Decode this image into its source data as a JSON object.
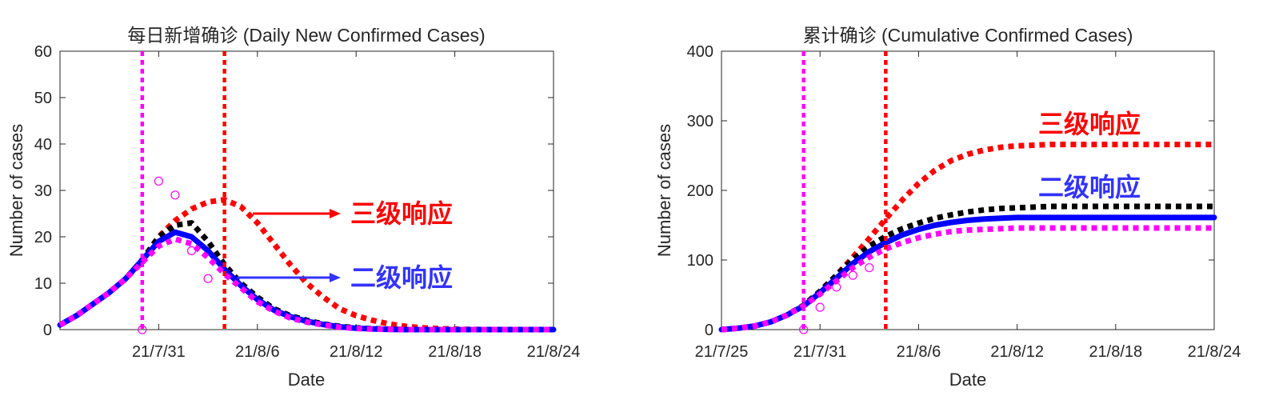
{
  "chart_data": [
    {
      "type": "line",
      "title": "每日新增确诊 (Daily New Confirmed Cases)",
      "xlabel": "Date",
      "ylabel": "Number of cases",
      "xlim": [
        "21/7/25",
        "21/8/24"
      ],
      "ylim": [
        0,
        60
      ],
      "yticks": [
        0,
        10,
        20,
        30,
        40,
        50,
        60
      ],
      "xtick_labels": [
        "21/7/31",
        "21/8/6",
        "21/8/12",
        "21/8/18",
        "21/8/24"
      ],
      "grid": false,
      "vlines": [
        {
          "x": "21/7/30",
          "color": "#ff00ff"
        },
        {
          "x": "21/8/4",
          "color": "#ff0000"
        }
      ],
      "annotations": [
        {
          "text": "三级响应",
          "color": "#ff0000",
          "arrow": true
        },
        {
          "text": "二级响应",
          "color": "#3333ff",
          "arrow": true
        }
      ],
      "x": [
        "21/7/25",
        "21/7/26",
        "21/7/27",
        "21/7/28",
        "21/7/29",
        "21/7/30",
        "21/7/31",
        "21/8/1",
        "21/8/2",
        "21/8/3",
        "21/8/4",
        "21/8/5",
        "21/8/6",
        "21/8/7",
        "21/8/8",
        "21/8/9",
        "21/8/10",
        "21/8/11",
        "21/8/12",
        "21/8/13",
        "21/8/14",
        "21/8/15",
        "21/8/16",
        "21/8/17",
        "21/8/18",
        "21/8/19",
        "21/8/20",
        "21/8/21",
        "21/8/22",
        "21/8/23",
        "21/8/24"
      ],
      "series": [
        {
          "color": "#ff0000",
          "style": "dotted",
          "values": [
            1,
            3,
            5.5,
            8,
            11,
            15,
            20,
            23.5,
            26,
            27.5,
            28,
            26.5,
            23,
            18.5,
            14,
            10,
            7,
            4.5,
            3,
            2,
            1.2,
            0.7,
            0.4,
            0.2,
            0.1,
            0.05,
            0,
            0,
            0,
            0,
            0
          ]
        },
        {
          "color": "#000000",
          "style": "dotted",
          "values": [
            1,
            3,
            5.5,
            8,
            11,
            15,
            20,
            22.5,
            23,
            19,
            14,
            10,
            7,
            4.5,
            3,
            2,
            1.2,
            0.7,
            0.4,
            0.2,
            0.1,
            0,
            0,
            0,
            0,
            0,
            0,
            0,
            0,
            0,
            0
          ]
        },
        {
          "color": "#0000ff",
          "style": "solid",
          "values": [
            1,
            3,
            5.5,
            8,
            11,
            15,
            19,
            21,
            20,
            17,
            13,
            9.5,
            6.5,
            4.2,
            2.8,
            1.8,
            1.1,
            0.6,
            0.3,
            0.15,
            0.05,
            0,
            0,
            0,
            0,
            0,
            0,
            0,
            0,
            0,
            0
          ]
        },
        {
          "color": "#ff00ff",
          "style": "dotted",
          "values": [
            1,
            3,
            5.5,
            8,
            11,
            14.5,
            18,
            19.5,
            18.5,
            15.5,
            12,
            9,
            6,
            4,
            2.5,
            1.6,
            1,
            0.5,
            0.25,
            0.1,
            0.05,
            0,
            0,
            0,
            0,
            0,
            0,
            0,
            0,
            0,
            0
          ]
        }
      ],
      "observed": {
        "color": "#ff00ff",
        "x": [
          "21/7/30",
          "21/7/31",
          "21/8/1",
          "21/8/2",
          "21/8/3"
        ],
        "values": [
          0,
          32,
          29,
          17,
          11
        ]
      }
    },
    {
      "type": "line",
      "title": "累计确诊 (Cumulative Confirmed Cases)",
      "xlabel": "Date",
      "ylabel": "Number of cases",
      "xlim": [
        "21/7/25",
        "21/8/24"
      ],
      "ylim": [
        0,
        400
      ],
      "yticks": [
        0,
        100,
        200,
        300,
        400
      ],
      "xtick_labels": [
        "21/7/25",
        "21/7/31",
        "21/8/6",
        "21/8/12",
        "21/8/18",
        "21/8/24"
      ],
      "grid": false,
      "vlines": [
        {
          "x": "21/7/30",
          "color": "#ff00ff"
        },
        {
          "x": "21/8/4",
          "color": "#ff0000"
        }
      ],
      "annotations": [
        {
          "text": "三级响应",
          "color": "#ff0000",
          "arrow": false
        },
        {
          "text": "二级响应",
          "color": "#3333ff",
          "arrow": false
        }
      ],
      "x": [
        "21/7/25",
        "21/7/26",
        "21/7/27",
        "21/7/28",
        "21/7/29",
        "21/7/30",
        "21/7/31",
        "21/8/1",
        "21/8/2",
        "21/8/3",
        "21/8/4",
        "21/8/5",
        "21/8/6",
        "21/8/7",
        "21/8/8",
        "21/8/9",
        "21/8/10",
        "21/8/11",
        "21/8/12",
        "21/8/13",
        "21/8/14",
        "21/8/15",
        "21/8/16",
        "21/8/17",
        "21/8/18",
        "21/8/19",
        "21/8/20",
        "21/8/21",
        "21/8/22",
        "21/8/23",
        "21/8/24"
      ],
      "series": [
        {
          "color": "#ff0000",
          "style": "dotted",
          "values": [
            0,
            2,
            5,
            11,
            21,
            35,
            55,
            78,
            104,
            131,
            159,
            186,
            210,
            229,
            243,
            252,
            258,
            262,
            264,
            265,
            266,
            266,
            266,
            266,
            266,
            266,
            266,
            266,
            266,
            266,
            266
          ]
        },
        {
          "color": "#000000",
          "style": "dotted",
          "values": [
            0,
            2,
            5,
            11,
            21,
            35,
            55,
            78,
            101,
            120,
            134,
            145,
            153,
            160,
            165,
            169,
            172,
            174,
            175,
            176,
            177,
            177,
            177,
            177,
            177,
            177,
            177,
            177,
            177,
            177,
            177
          ]
        },
        {
          "color": "#0000ff",
          "style": "solid",
          "values": [
            0,
            2,
            5,
            11,
            21,
            34,
            53,
            74,
            95,
            112,
            125,
            136,
            144,
            150,
            154,
            157,
            159,
            160,
            161,
            161,
            161,
            161,
            161,
            161,
            161,
            161,
            161,
            161,
            161,
            161,
            161
          ]
        },
        {
          "color": "#ff00ff",
          "style": "dotted",
          "values": [
            0,
            2,
            5,
            11,
            21,
            34,
            51,
            70,
            89,
            104,
            116,
            125,
            132,
            137,
            141,
            143,
            144,
            145,
            146,
            146,
            146,
            146,
            146,
            146,
            146,
            146,
            146,
            146,
            146,
            146,
            146
          ]
        }
      ],
      "observed": {
        "color": "#ff00ff",
        "x": [
          "21/7/30",
          "21/7/31",
          "21/8/1",
          "21/8/2",
          "21/8/3"
        ],
        "values": [
          0,
          32,
          61,
          78,
          89
        ]
      }
    }
  ]
}
